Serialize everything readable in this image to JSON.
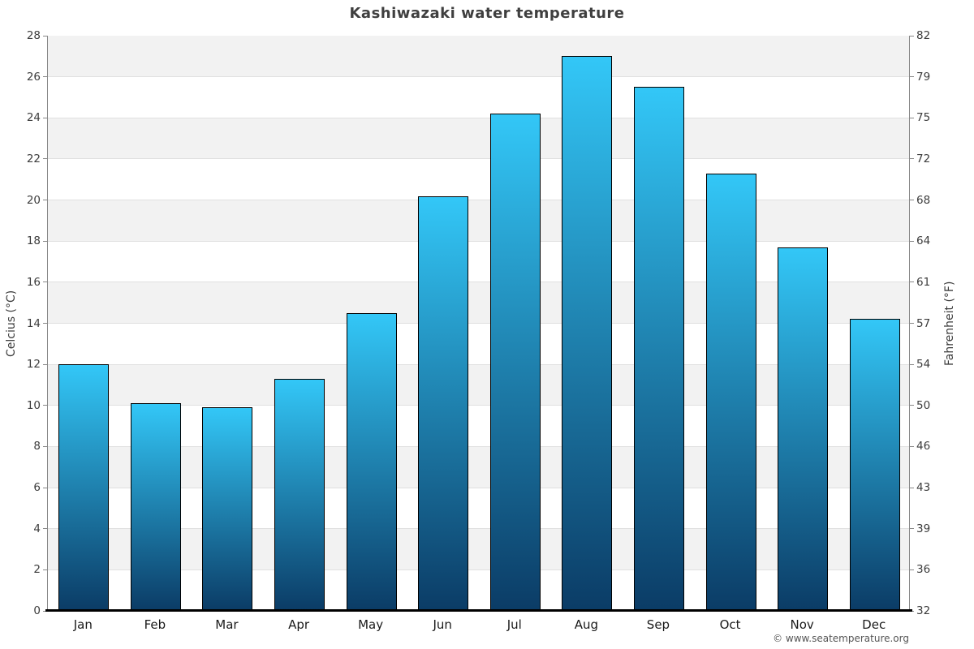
{
  "title": "Kashiwazaki water temperature",
  "copyright": "© www.seatemperature.org",
  "chart_data": {
    "type": "bar",
    "title": "Kashiwazaki water temperature",
    "categories": [
      "Jan",
      "Feb",
      "Mar",
      "Apr",
      "May",
      "Jun",
      "Jul",
      "Aug",
      "Sep",
      "Oct",
      "Nov",
      "Dec"
    ],
    "values": [
      12.0,
      10.1,
      9.9,
      11.3,
      14.5,
      20.2,
      24.2,
      27.0,
      25.5,
      21.3,
      17.7,
      14.2
    ],
    "xlabel": "",
    "ylabel": "Celcius (°C)",
    "ylabel_right": "Fahrenheit (°F)",
    "ylim": [
      0,
      28
    ],
    "ytick_step": 2,
    "yticks_celsius": [
      0,
      2,
      4,
      6,
      8,
      10,
      12,
      14,
      16,
      18,
      20,
      22,
      24,
      26,
      28
    ],
    "yticks_fahrenheit": [
      32,
      36,
      39,
      43,
      46,
      50,
      54,
      57,
      61,
      64,
      68,
      72,
      75,
      79,
      82
    ],
    "grid": "horizontal-bands-alternating-2C",
    "legend": "none",
    "colors": {
      "bar_top": "#33c7f7",
      "bar_bottom": "#0b3c66",
      "bar_border": "#000000",
      "band_alt": "#f2f2f2",
      "band_base": "#ffffff",
      "gridline": "#e0e0e0",
      "axis_line": "#888888",
      "bottom_axis": "#000000",
      "tick_text": "#3c3c3c",
      "title_text": "#3f3f3f",
      "copyright_text": "#555555"
    }
  }
}
